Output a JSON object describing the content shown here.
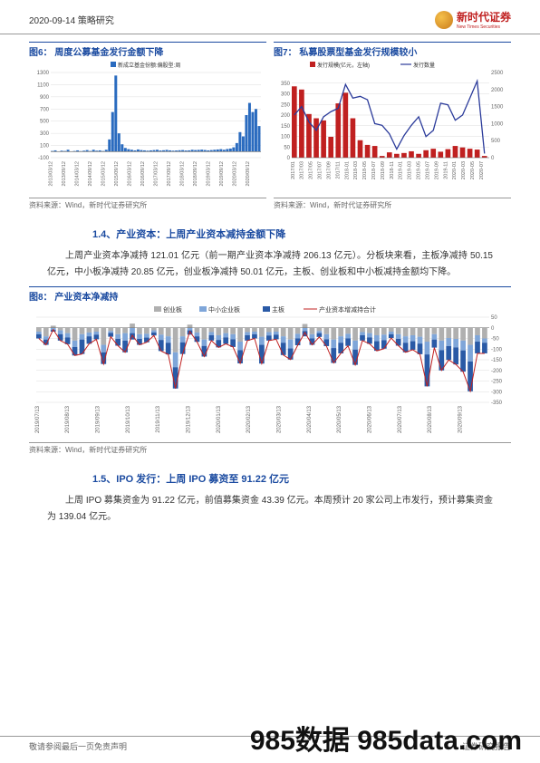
{
  "header": {
    "date_category": "2020-09-14  策略研究",
    "brand_cn": "新时代证券",
    "brand_en": "New Times Securities"
  },
  "fig6": {
    "title": "图6：  周度公募基金发行金额下降",
    "legend": "新成立基金份额:偏股型:周",
    "source": "资料来源：Wind，新时代证券研究所",
    "ylim": [
      -100,
      1300
    ],
    "yticks": [
      -100,
      100,
      300,
      500,
      700,
      900,
      1100,
      1300
    ],
    "xlabels": [
      "2013/03/12",
      "2013/09/12",
      "2014/03/12",
      "2014/09/12",
      "2015/03/12",
      "2015/09/12",
      "2016/03/12",
      "2016/09/12",
      "2017/03/12",
      "2017/09/12",
      "2018/03/12",
      "2018/09/12",
      "2019/03/12",
      "2019/09/12",
      "2020/03/12",
      "2020/09/12"
    ],
    "bar_color": "#2a6bbf",
    "grid_color": "#dddddd",
    "values": [
      10,
      20,
      5,
      15,
      10,
      30,
      5,
      10,
      20,
      8,
      15,
      25,
      10,
      30,
      15,
      20,
      10,
      30,
      200,
      650,
      1250,
      300,
      120,
      60,
      40,
      30,
      20,
      35,
      25,
      20,
      15,
      20,
      25,
      30,
      18,
      22,
      28,
      20,
      15,
      18,
      22,
      25,
      18,
      20,
      30,
      25,
      28,
      32,
      26,
      20,
      25,
      30,
      35,
      40,
      30,
      42,
      50,
      70,
      140,
      320,
      250,
      600,
      800,
      650,
      700,
      420
    ]
  },
  "fig7": {
    "title": "图7：  私募股票型基金发行规模较小",
    "legend_bar": "发行规模(亿元，左轴)",
    "legend_line": "发行数量",
    "source": "资料来源：Wind，新时代证券研究所",
    "ylim_left": [
      0,
      400
    ],
    "yticks_left": [
      0,
      50,
      100,
      150,
      200,
      250,
      300,
      350
    ],
    "ylim_right": [
      0,
      2500
    ],
    "yticks_right": [
      0,
      500,
      1000,
      1500,
      2000,
      2500
    ],
    "xlabels": [
      "2017/01",
      "2017/03",
      "2017/05",
      "2017/07",
      "2017/09",
      "2017/11",
      "2018-01",
      "2018-03",
      "2018-05",
      "2018-07",
      "2018-09",
      "2018-11",
      "2019-01",
      "2019-03",
      "2019-05",
      "2019-07",
      "2019-09",
      "2019-11",
      "2020-01",
      "2020-03",
      "2020-05",
      "2020-07"
    ],
    "bar_color": "#c02020",
    "line_color": "#2a3a9a",
    "grid_color": "#dddddd",
    "bar_values": [
      335,
      320,
      205,
      185,
      175,
      98,
      255,
      305,
      185,
      82,
      60,
      55,
      8,
      25,
      18,
      22,
      30,
      18,
      35,
      42,
      28,
      40,
      55,
      48,
      42,
      38,
      8
    ],
    "line_values": [
      1250,
      1500,
      1050,
      800,
      1200,
      1350,
      1450,
      2150,
      1750,
      1800,
      1700,
      1000,
      950,
      700,
      250,
      650,
      950,
      1200,
      620,
      800,
      1600,
      1550,
      1100,
      1250,
      1750,
      2250,
      120
    ]
  },
  "section14": {
    "title": "1.4、产业资本：上周产业资本减持金额下降",
    "text": "上周产业资本净减持 121.01 亿元（前一期产业资本净减持 206.13 亿元）。分板块来看，主板净减持 50.15 亿元，中小板净减持 20.85 亿元，创业板净减持 50.01 亿元，主板、创业板和中小板减持金额均下降。"
  },
  "fig8": {
    "title": "图8：  产业资本净减持",
    "legend": {
      "cyb": "创业板",
      "zxb": "中小企业板",
      "zb": "主板",
      "total": "产业资本增减持合计"
    },
    "source": "资料来源：Wind，新时代证券研究所",
    "ylim": [
      -350,
      50
    ],
    "yticks": [
      50,
      0,
      -50,
      -100,
      -150,
      -200,
      -250,
      -300,
      -350
    ],
    "xlabels": [
      "2019/07/13",
      "2019/08/13",
      "2019/09/13",
      "2019/10/13",
      "2019/11/13",
      "2019/12/13",
      "2020/01/13",
      "2020/02/13",
      "2020/03/13",
      "2020/04/13",
      "2020/05/13",
      "2020/06/13",
      "2020/07/13",
      "2020/08/13",
      "2020/09/13"
    ],
    "colors": {
      "cyb": "#b0b0b0",
      "zxb": "#7fa6d9",
      "zb": "#2a5aa6",
      "total": "#c02020"
    },
    "grid_color": "#dddddd",
    "cyb": [
      -18,
      -40,
      10,
      -12,
      -25,
      -60,
      -30,
      -22,
      -18,
      -80,
      -15,
      -30,
      -25,
      20,
      -30,
      -28,
      -12,
      -32,
      -40,
      -115,
      -40,
      15,
      -22,
      -55,
      -20,
      -35,
      -25,
      -30,
      -65,
      -20,
      -18,
      -42,
      -20,
      -18,
      -40,
      -55,
      -28,
      18,
      -30,
      -15,
      -30,
      -55,
      -40,
      -28,
      -60,
      -20,
      -25,
      -35,
      -32,
      -18,
      -30,
      -40,
      -35,
      -42,
      -65,
      -30,
      -60,
      -48,
      -52,
      -60,
      -80,
      -35,
      -50
    ],
    "zxb": [
      -12,
      -15,
      -10,
      -18,
      -20,
      -30,
      -25,
      -18,
      -14,
      -35,
      -9,
      -22,
      -35,
      -25,
      -22,
      -18,
      -10,
      -25,
      -30,
      -70,
      -28,
      -12,
      -18,
      -30,
      -15,
      -22,
      -20,
      -24,
      -40,
      -15,
      -12,
      -38,
      -16,
      -14,
      -30,
      -42,
      -22,
      -15,
      -20,
      -10,
      -24,
      -40,
      -30,
      -22,
      -42,
      -15,
      -20,
      -28,
      -26,
      -12,
      -22,
      -30,
      -28,
      -32,
      -60,
      -25,
      -45,
      -38,
      -40,
      -46,
      -78,
      -30,
      -20
    ],
    "zb": [
      -20,
      -25,
      -8,
      -30,
      -32,
      -40,
      -68,
      -35,
      -22,
      -55,
      -18,
      -32,
      -55,
      -30,
      -28,
      -22,
      -14,
      -52,
      -55,
      -100,
      -55,
      -20,
      -26,
      -50,
      -25,
      -35,
      -30,
      -36,
      -62,
      -25,
      -20,
      -88,
      -24,
      -22,
      -58,
      -52,
      -32,
      -25,
      -30,
      -18,
      -32,
      -70,
      -50,
      -35,
      -72,
      -25,
      -30,
      -45,
      -40,
      -18,
      -32,
      -45,
      -40,
      -50,
      -150,
      -38,
      -95,
      -65,
      -80,
      -100,
      -140,
      -55,
      -50
    ]
  },
  "section15": {
    "title": "1.5、IPO 发行：上周 IPO 募资至 91.22 亿元",
    "text": "上周 IPO 募集资金为 91.22 亿元，前值募集资金 43.39 亿元。本周预计 20 家公司上市发行，预计募集资金为 139.04 亿元。"
  },
  "footer": {
    "left": "敬请参阅最后一页免责声明",
    "right": "证券研究报告"
  },
  "watermark": "985数据 985data.com"
}
